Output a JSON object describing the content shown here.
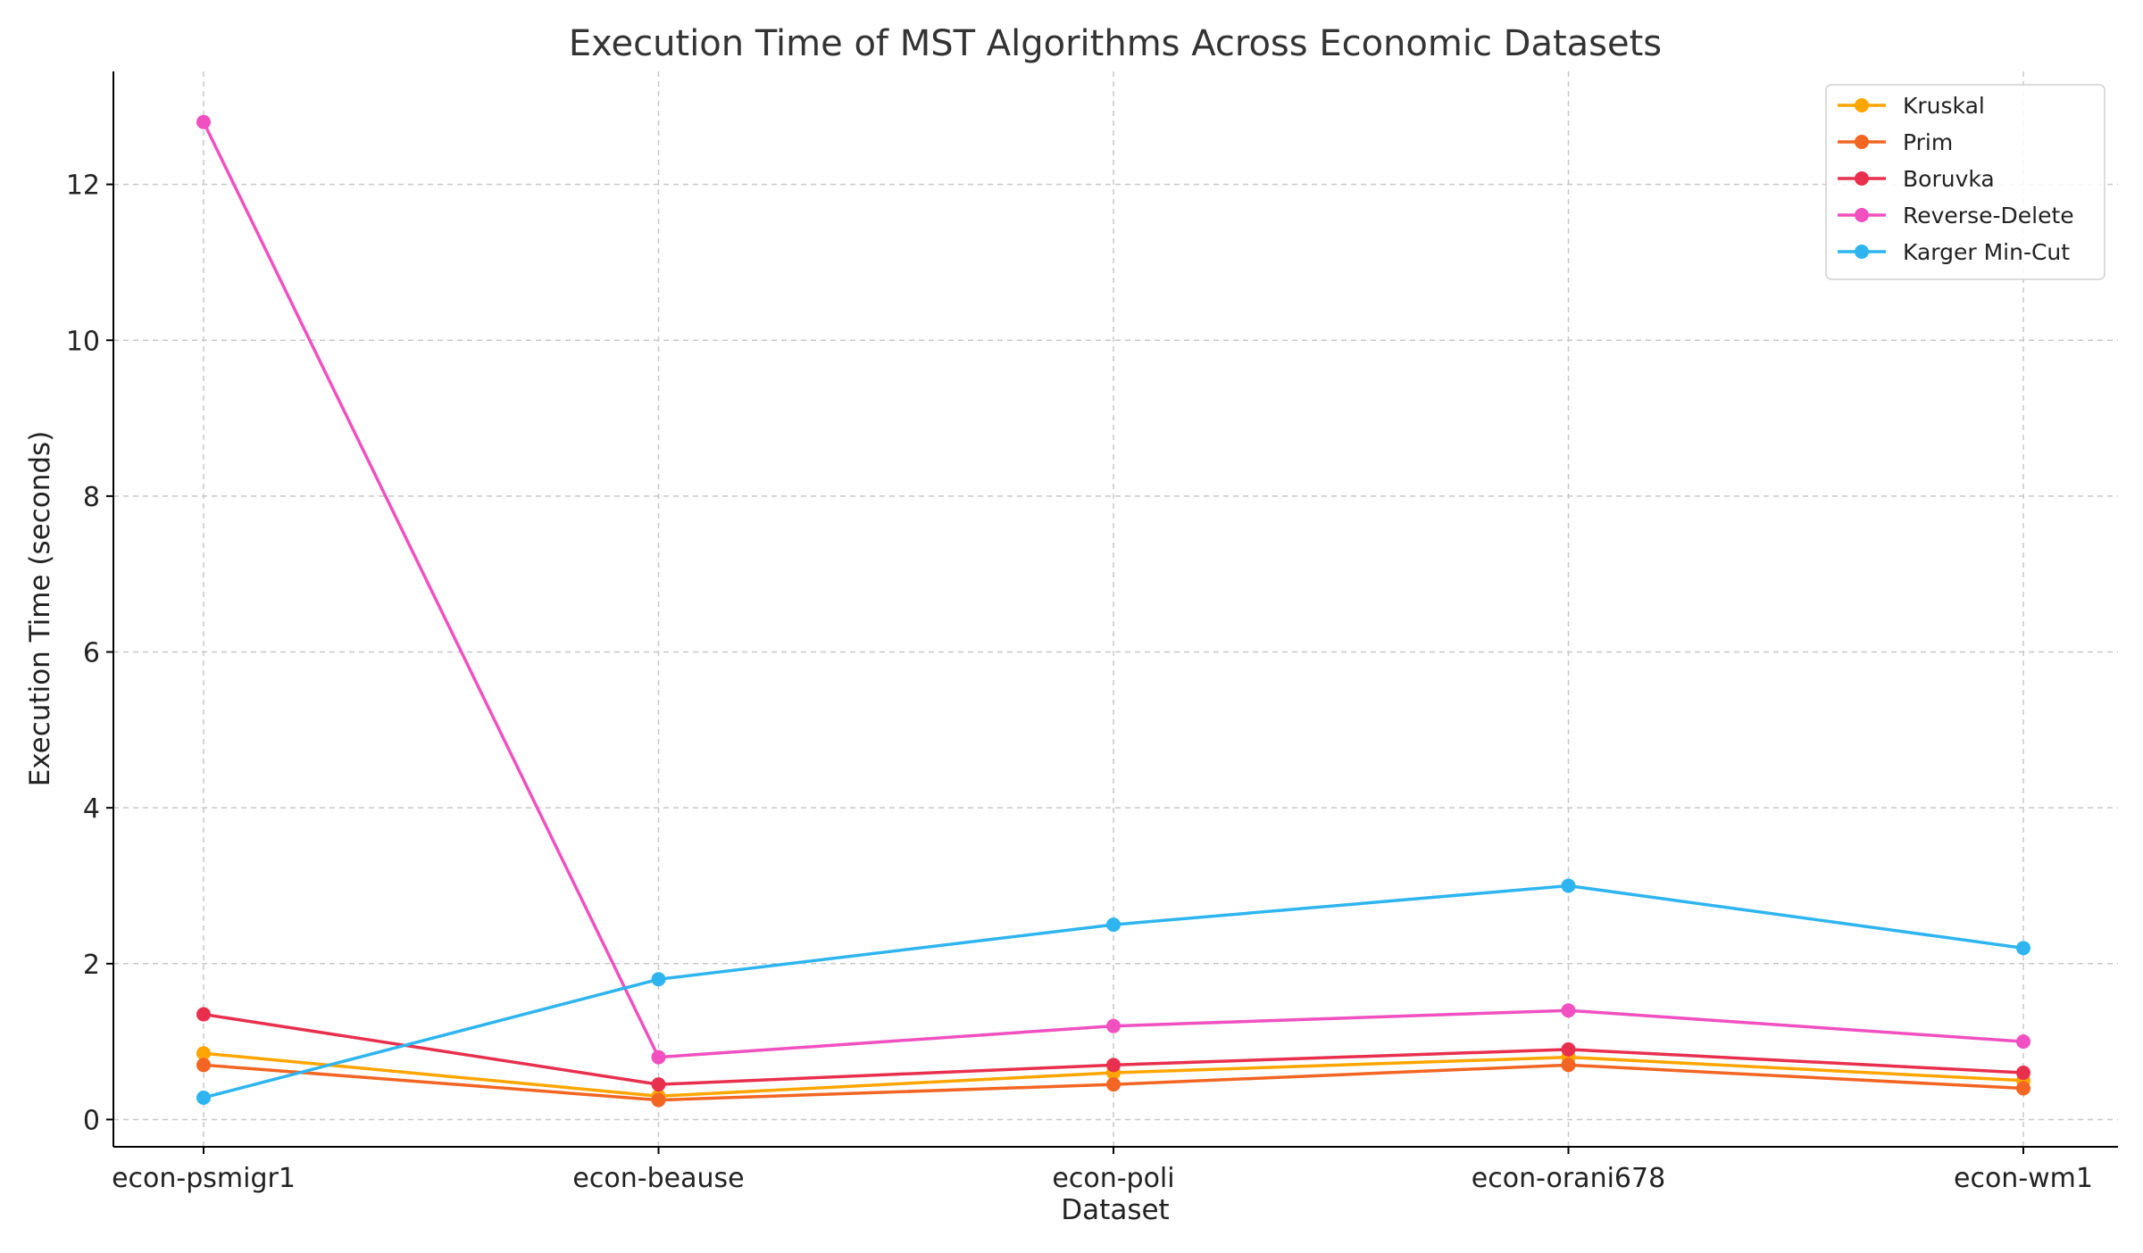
{
  "chart_data": {
    "type": "line",
    "title": "Execution Time of MST Algorithms Across Economic Datasets",
    "xlabel": "Dataset",
    "ylabel": "Execution Time (seconds)",
    "categories": [
      "econ-psmigr1",
      "econ-beause",
      "econ-poli",
      "econ-orani678",
      "econ-wm1"
    ],
    "ylim": [
      -0.35,
      13.45
    ],
    "yticks": [
      0,
      2,
      4,
      6,
      8,
      10,
      12
    ],
    "grid": true,
    "legend_position": "top-right",
    "series": [
      {
        "name": "Kruskal",
        "color": "#FFA500",
        "values": [
          0.85,
          0.3,
          0.6,
          0.8,
          0.5
        ]
      },
      {
        "name": "Prim",
        "color": "#F26522",
        "values": [
          0.7,
          0.25,
          0.45,
          0.7,
          0.4
        ]
      },
      {
        "name": "Boruvka",
        "color": "#E8304E",
        "values": [
          1.35,
          0.45,
          0.7,
          0.9,
          0.6
        ]
      },
      {
        "name": "Reverse-Delete",
        "color": "#F050C0",
        "values": [
          12.8,
          0.8,
          1.2,
          1.4,
          1.0
        ]
      },
      {
        "name": "Karger Min-Cut",
        "color": "#2EB5EF",
        "values": [
          0.28,
          1.8,
          2.5,
          3.0,
          2.2
        ]
      }
    ]
  }
}
